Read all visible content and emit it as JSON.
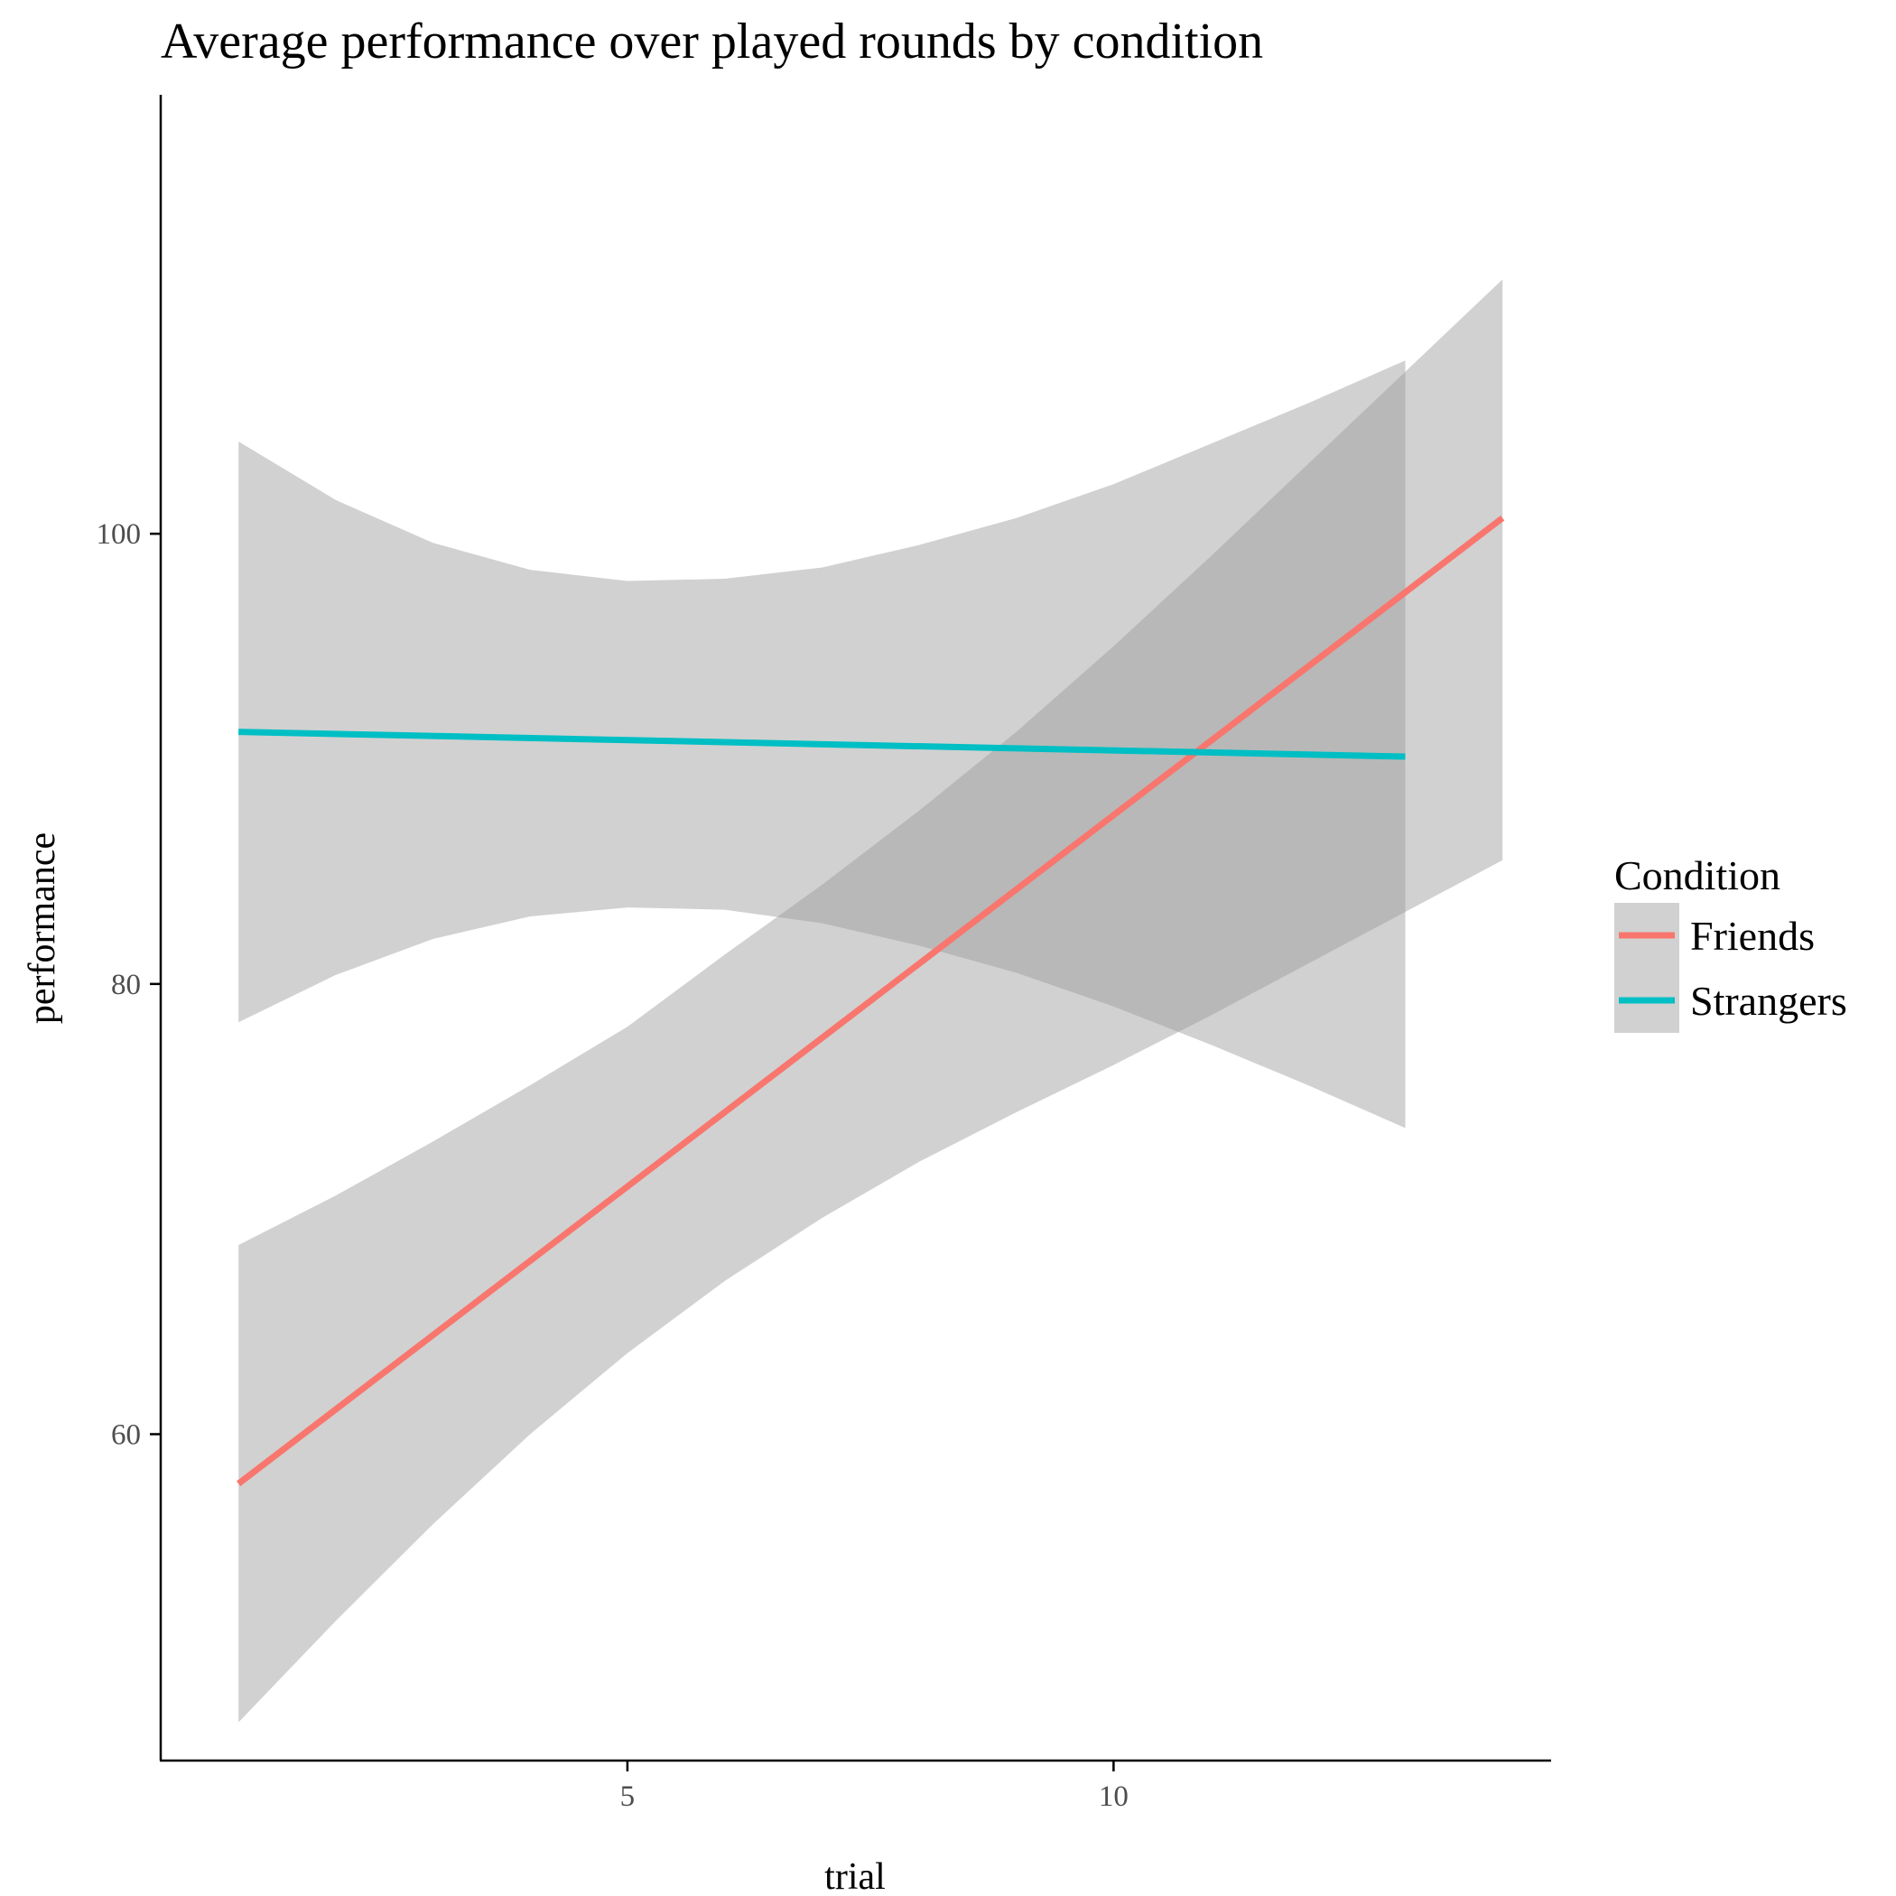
{
  "chart_data": {
    "type": "line",
    "title": "Average performance over played rounds by condition",
    "xlabel": "trial",
    "ylabel": "performance",
    "xlim": [
      0.2,
      14.5
    ],
    "ylim": [
      45.5,
      119.5
    ],
    "x_ticks": [
      5,
      10
    ],
    "x_tick_labels": [
      "5",
      "10"
    ],
    "y_ticks": [
      60,
      80,
      100
    ],
    "y_tick_labels": [
      "60",
      "80",
      "100"
    ],
    "grid": false,
    "legend": {
      "title": "Condition",
      "placement": "right"
    },
    "series": [
      {
        "name": "Friends",
        "color": "#F8766D",
        "x": [
          1,
          14
        ],
        "y": [
          57.8,
          100.7
        ],
        "ribbon": {
          "x": [
            1,
            2,
            3,
            4,
            5,
            6,
            7,
            8,
            9,
            10,
            11,
            12,
            13,
            14
          ],
          "lower": [
            47.2,
            51.7,
            56.0,
            60.0,
            63.6,
            66.8,
            69.6,
            72.1,
            74.3,
            76.4,
            78.6,
            80.9,
            83.2,
            85.5
          ],
          "upper": [
            68.4,
            70.6,
            73.0,
            75.5,
            78.1,
            81.3,
            84.4,
            87.7,
            91.2,
            95.0,
            99.0,
            103.1,
            107.2,
            111.3
          ]
        }
      },
      {
        "name": "Strangers",
        "color": "#00BFC4",
        "x": [
          1,
          13
        ],
        "y": [
          91.2,
          90.1
        ],
        "ribbon": {
          "x": [
            1,
            2,
            3,
            4,
            5,
            6,
            7,
            8,
            9,
            10,
            11,
            12,
            13
          ],
          "lower": [
            78.3,
            80.4,
            82.0,
            83.0,
            83.4,
            83.3,
            82.7,
            81.7,
            80.5,
            79.0,
            77.3,
            75.5,
            73.6
          ],
          "upper": [
            104.1,
            101.5,
            99.6,
            98.4,
            97.9,
            98.0,
            98.5,
            99.5,
            100.7,
            102.2,
            104.0,
            105.8,
            107.7
          ]
        }
      }
    ]
  }
}
